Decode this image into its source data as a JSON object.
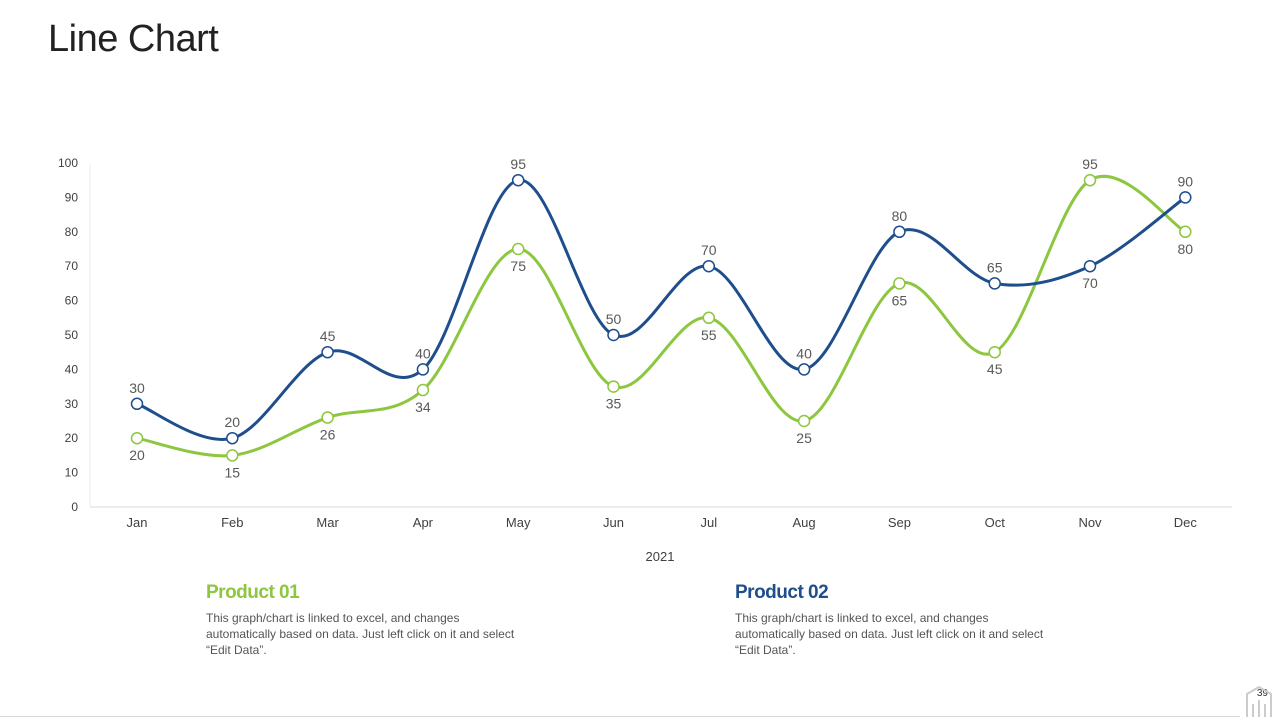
{
  "slide": {
    "title": "Line Chart",
    "page_number": "39"
  },
  "legend": [
    {
      "title": "Product 01",
      "color": "#8dc63f",
      "description": "This graph/chart is linked to excel, and changes automatically based on data. Just left click on it and select “Edit Data”."
    },
    {
      "title": "Product 02",
      "color": "#1f4e8c",
      "description": "This graph/chart is linked to excel, and changes automatically based on data. Just left click on it and select “Edit Data”."
    }
  ],
  "chart_data": {
    "type": "line",
    "title": "",
    "xlabel": "2021",
    "ylabel": "",
    "categories": [
      "Jan",
      "Feb",
      "Mar",
      "Apr",
      "May",
      "Jun",
      "Jul",
      "Aug",
      "Sep",
      "Oct",
      "Nov",
      "Dec"
    ],
    "ylim": [
      0,
      100
    ],
    "yticks": [
      0,
      10,
      20,
      30,
      40,
      50,
      60,
      70,
      80,
      90,
      100
    ],
    "grid": false,
    "smooth": true,
    "series": [
      {
        "name": "Product 01",
        "color": "#8dc63f",
        "values": [
          20,
          15,
          26,
          34,
          75,
          35,
          55,
          25,
          65,
          45,
          95,
          80
        ]
      },
      {
        "name": "Product 02",
        "color": "#1f4e8c",
        "values": [
          30,
          20,
          45,
          40,
          95,
          50,
          70,
          40,
          80,
          65,
          70,
          90
        ]
      }
    ]
  }
}
